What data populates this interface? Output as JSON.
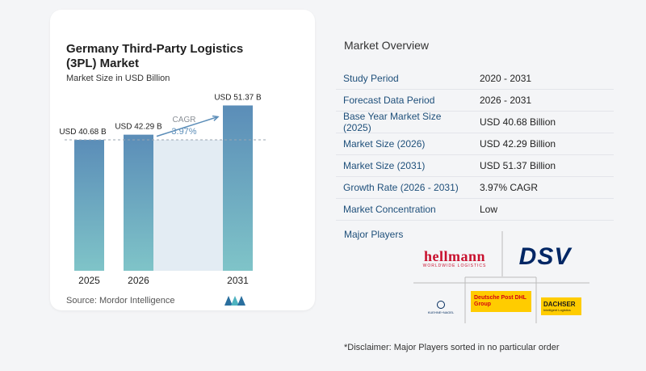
{
  "chart_data": {
    "type": "bar",
    "title": "Germany Third-Party Logistics (3PL) Market",
    "subtitle": "Market Size in USD Billion",
    "categories": [
      "2025",
      "2026",
      "2031"
    ],
    "values": [
      40.68,
      42.29,
      51.37
    ],
    "data_labels": [
      "USD 40.68 B",
      "USD 42.29 B",
      "USD 51.37 B"
    ],
    "cagr_label": "CAGR",
    "cagr_value": "3.97%",
    "ylim": [
      0,
      54
    ],
    "bar_color_top": "#5b8db8",
    "bar_color_bottom": "#7fc4c8",
    "band_color": "#e3ecf3",
    "grid": false
  },
  "source": "Source:  Mordor Intelligence",
  "overview": {
    "title": "Market Overview",
    "rows": [
      {
        "key": "Study Period",
        "value": "2020 - 2031"
      },
      {
        "key": "Forecast Data Period",
        "value": "2026 - 2031"
      },
      {
        "key": "Base Year Market Size (2025)",
        "value": "USD 40.68 Billion"
      },
      {
        "key": "Market Size (2026)",
        "value": "USD 42.29 Billion"
      },
      {
        "key": "Market Size (2031)",
        "value": "USD 51.37 Billion"
      },
      {
        "key": "Growth Rate (2026 - 2031)",
        "value": "3.97% CAGR"
      },
      {
        "key": "Market Concentration",
        "value": "Low"
      }
    ],
    "players_label": "Major Players",
    "players": {
      "hellmann_name": "hellmann",
      "hellmann_sub": "WORLDWIDE LOGISTICS",
      "dsv": "DSV",
      "kn": "KUEHNE+NAGEL",
      "dhl_line1": "Deutsche Post DHL",
      "dhl_line2": "Group",
      "dachser_name": "DACHSER",
      "dachser_sub": "Intelligent Logistics"
    },
    "disclaimer": "*Disclaimer: Major Players sorted in no particular order"
  }
}
